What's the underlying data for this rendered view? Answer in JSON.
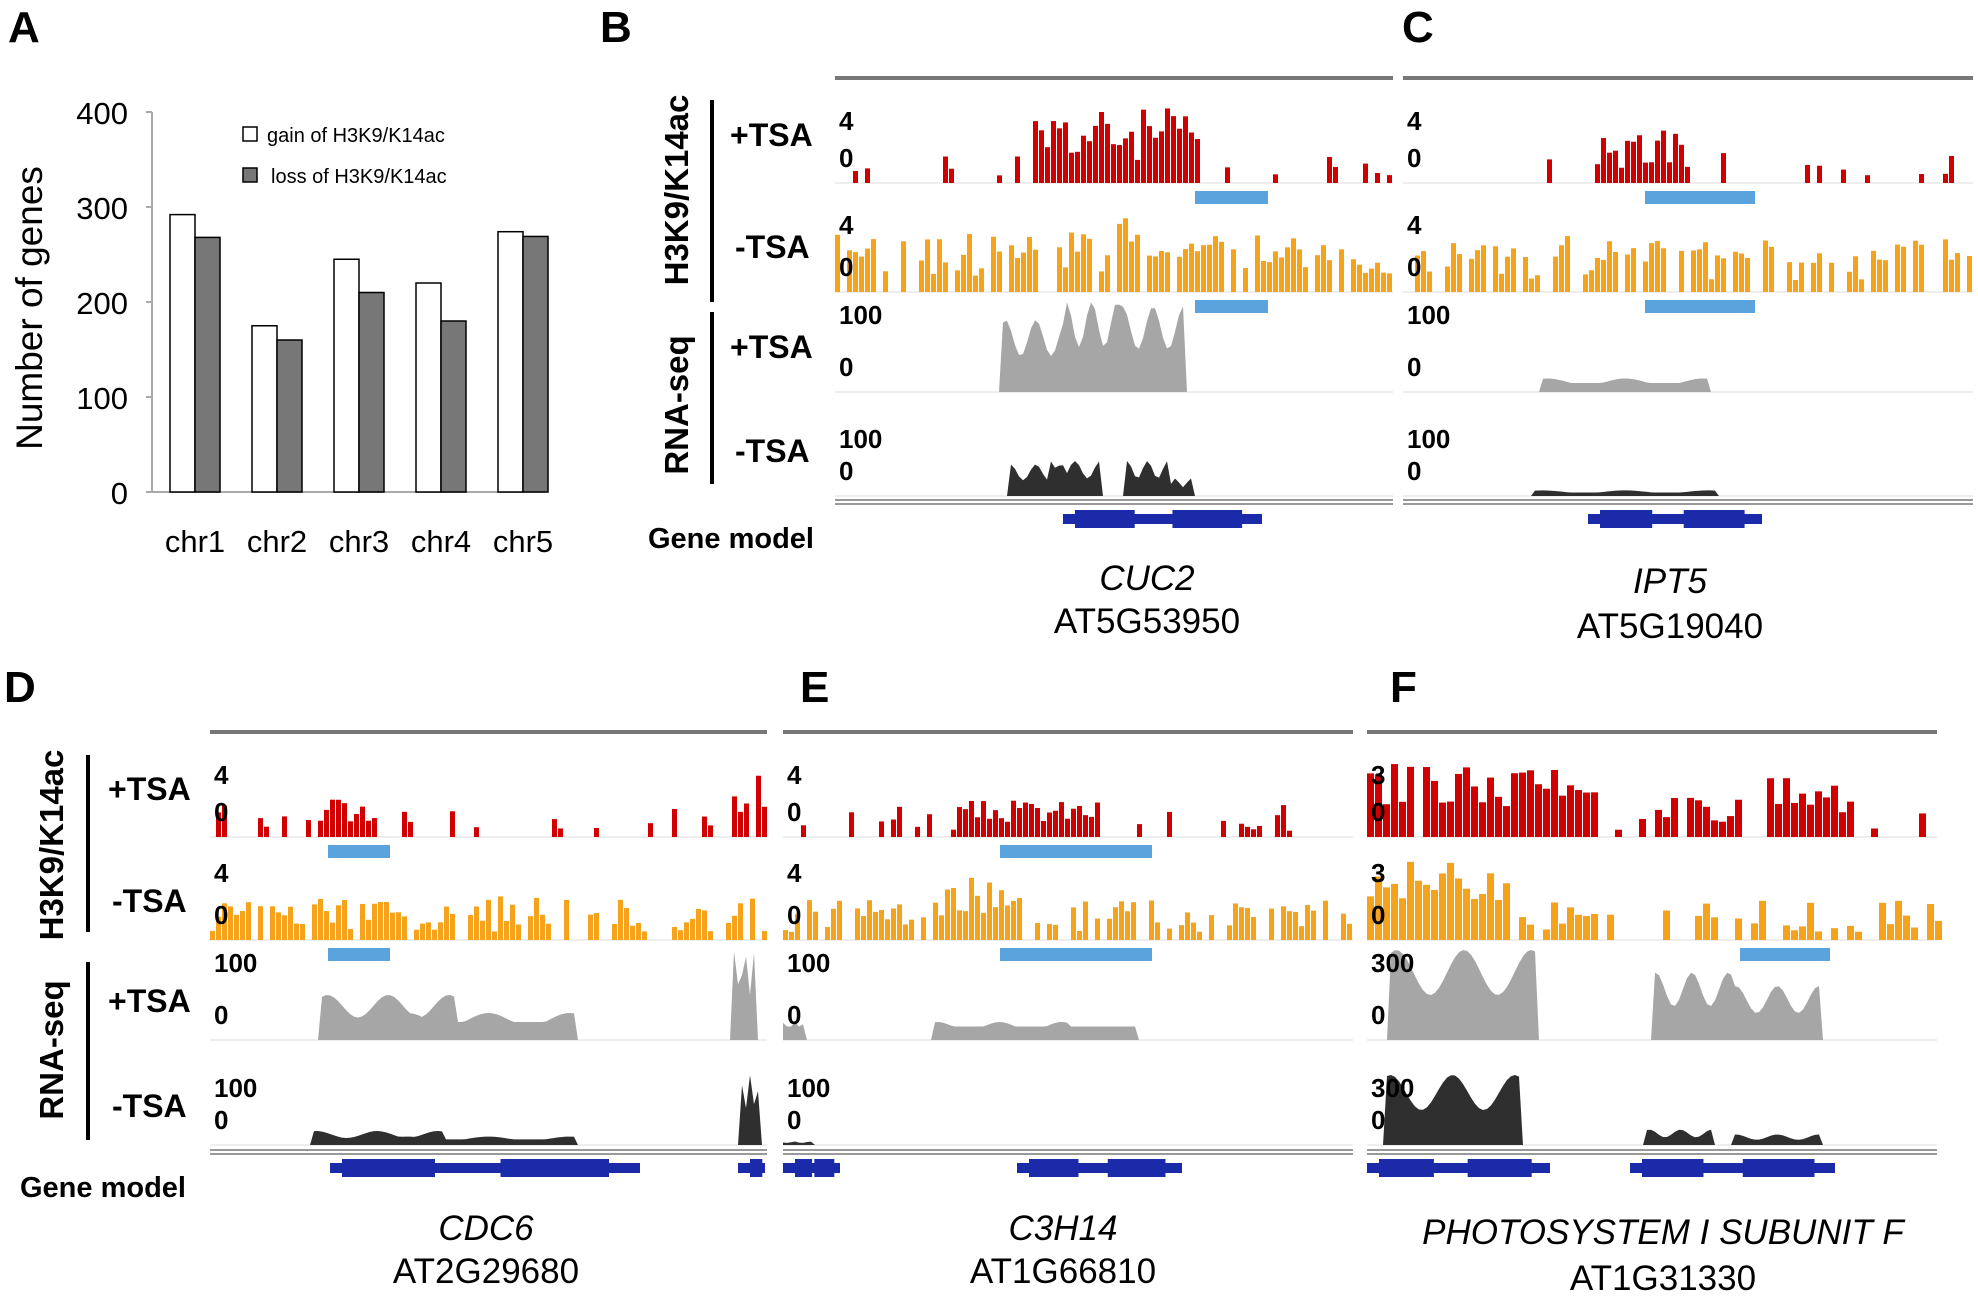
{
  "figure": {
    "panel_labels": [
      "A",
      "B",
      "C",
      "D",
      "E",
      "F"
    ],
    "track_labels": {
      "h3k9": "H3K9/K14ac",
      "rnaseq": "RNA-seq",
      "plus_tsa": "+TSA",
      "minus_tsa": "-TSA",
      "gene_model": "Gene model"
    },
    "genes": [
      {
        "name": "CUC2",
        "id": "AT5G53950"
      },
      {
        "name": "IPT5",
        "id": "AT5G19040"
      },
      {
        "name": "CDC6",
        "id": "AT2G29680"
      },
      {
        "name": "C3H14",
        "id": "AT1G66810"
      },
      {
        "name": "PHOTOSYSTEM I SUBUNIT F",
        "id": "AT1G31330"
      }
    ],
    "scales": {
      "chip_max": "4",
      "chip_min": "0",
      "chip_max_f": "3",
      "rna_max": "100",
      "rna_min": "0",
      "rna_max_f": "300"
    }
  },
  "chart_data": {
    "type": "bar",
    "title": "",
    "xlabel": "",
    "ylabel": "Number of genes",
    "ylim": [
      0,
      400
    ],
    "yticks": [
      "0",
      "100",
      "200",
      "300",
      "400"
    ],
    "categories": [
      "chr1",
      "chr2",
      "chr3",
      "chr4",
      "chr5"
    ],
    "series": [
      {
        "name": "gain of H3K9/K14ac",
        "color": "#ffffff",
        "values": [
          292,
          175,
          245,
          220,
          274
        ]
      },
      {
        "name": "loss of H3K9/K14ac",
        "color": "#777777",
        "values": [
          268,
          160,
          210,
          180,
          269
        ]
      }
    ],
    "legend_position": "top-right"
  },
  "colors": {
    "chip_plus": "#d00000",
    "chip_minus": "#f5a31c",
    "rna_plus": "#a6a6a6",
    "rna_minus": "#2f2f2f",
    "peak_bar": "#5ba3dc",
    "gene_model": "#1a2aa8"
  }
}
